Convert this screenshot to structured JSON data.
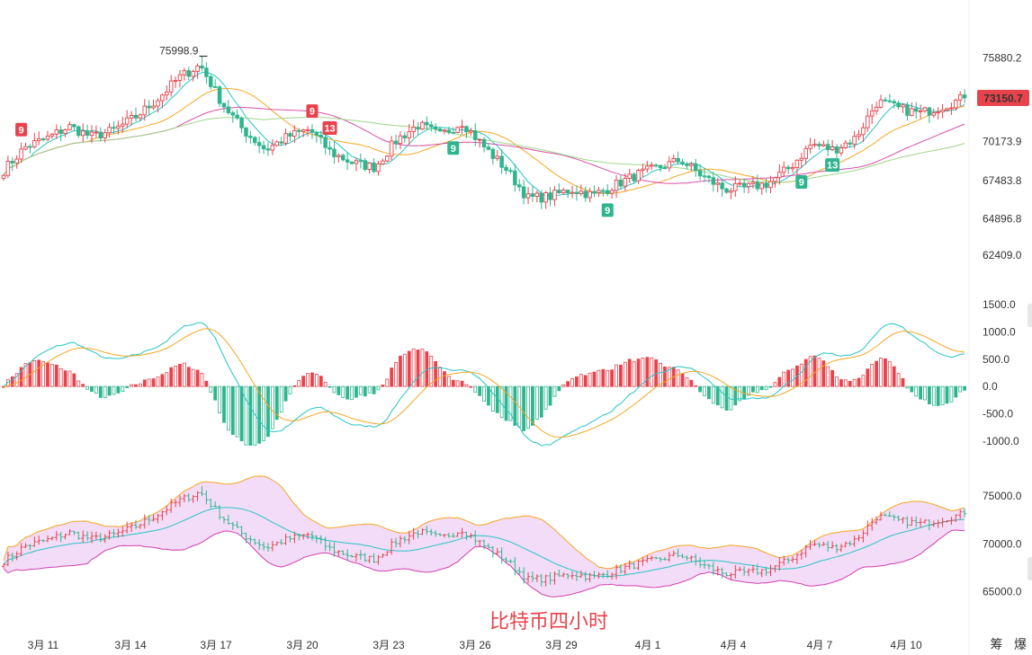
{
  "watermark": "比特币四小时",
  "corner_tag": "筹 爆",
  "colors": {
    "up": "#e8434c",
    "down": "#2fb58e",
    "ma_teal": "#27c4c4",
    "ma_orange": "#f5a623",
    "ma_pink": "#d94fa8",
    "ma_green": "#9fd58a",
    "boll_fill": "#f3dcf7",
    "boll_upper": "#f5a623",
    "boll_lower": "#d13fae",
    "boll_mid": "#27c4c4",
    "price_tag_bg": "#e8434c"
  },
  "chart_data": {
    "type": "candlestick",
    "dates": [
      "3月 11",
      "3月 14",
      "3月 17",
      "3月 20",
      "3月 23",
      "3月 26",
      "3月 29",
      "4月 1",
      "4月 4",
      "4月 7",
      "4月 10"
    ],
    "price_panel": {
      "ticks": [
        "75880.2",
        "73150.7",
        "70173.9",
        "67483.8",
        "64896.8",
        "62409.0"
      ],
      "tick_values": [
        75880.2,
        73150.7,
        70173.9,
        67483.8,
        64896.8,
        62409.0
      ],
      "ylim": [
        60800,
        78000
      ],
      "last_price": "73150.7",
      "high_label": "75998.9",
      "anchor_close": [
        68200,
        69800,
        70400,
        71200,
        70500,
        70900,
        71800,
        73000,
        74500,
        75400,
        72800,
        70900,
        69600,
        70500,
        71000,
        69400,
        68700,
        68400,
        70300,
        71300,
        70600,
        71500,
        69800,
        68300,
        66300,
        66400,
        66900,
        66500,
        67200,
        67900,
        68400,
        68900,
        67800,
        66900,
        67000,
        67300,
        68400,
        70000,
        69600,
        70400,
        72900,
        72400,
        72100,
        72600,
        73150
      ],
      "sequence_markers": [
        {
          "label": "9",
          "side": "top",
          "index": 4
        },
        {
          "label": "9",
          "side": "top",
          "index": 70
        },
        {
          "label": "13",
          "side": "top",
          "index": 74
        },
        {
          "label": "9",
          "side": "bottom",
          "index": 102
        },
        {
          "label": "9",
          "side": "bottom",
          "index": 137
        },
        {
          "label": "9",
          "side": "bottom",
          "index": 181
        },
        {
          "label": "13",
          "side": "bottom",
          "index": 188
        }
      ]
    },
    "macd_panel": {
      "ticks": [
        "1500.0",
        "1000.0",
        "500.0",
        "0.0",
        "-500.0",
        "-1000.0"
      ],
      "tick_values": [
        1500,
        1000,
        500,
        0,
        -500,
        -1000
      ],
      "ylim": [
        -1150,
        1650
      ]
    },
    "boll_panel": {
      "ticks": [
        "75000.0",
        "70000.0",
        "65000.0"
      ],
      "tick_values": [
        75000,
        70000,
        65000
      ],
      "ylim": [
        63000,
        78000
      ]
    }
  }
}
